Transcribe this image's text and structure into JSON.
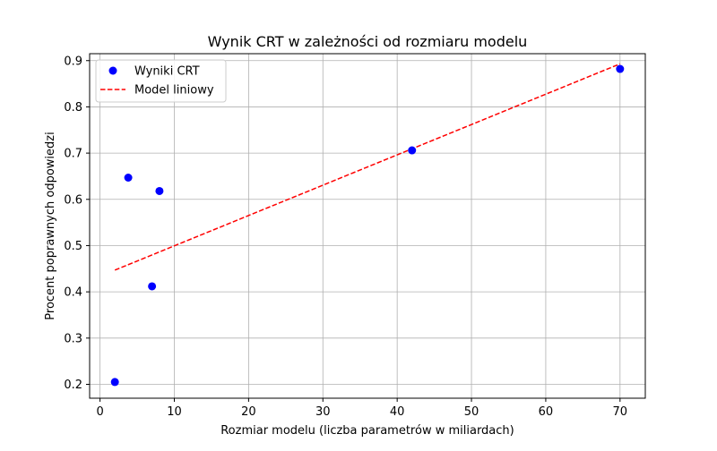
{
  "chart_data": {
    "type": "scatter",
    "title": "Wynik CRT w zależności od rozmiaru modelu",
    "xlabel": "Rozmiar modelu (liczba parametrów w miliardach)",
    "ylabel": "Procent poprawnych odpowiedzi",
    "xlim": [
      -1.4,
      73.4
    ],
    "ylim": [
      0.17,
      0.915
    ],
    "xticks": [
      0,
      10,
      20,
      30,
      40,
      50,
      60,
      70
    ],
    "xtick_labels": [
      "0",
      "10",
      "20",
      "30",
      "40",
      "50",
      "60",
      "70"
    ],
    "yticks": [
      0.2,
      0.3,
      0.4,
      0.5,
      0.6,
      0.7,
      0.8,
      0.9
    ],
    "ytick_labels": [
      "0.2",
      "0.3",
      "0.4",
      "0.5",
      "0.6",
      "0.7",
      "0.8",
      "0.9"
    ],
    "grid": true,
    "legend_position": "top-left",
    "series": [
      {
        "name": "Wyniki CRT",
        "kind": "scatter",
        "color": "#0000ff",
        "points": [
          {
            "x": 2,
            "y": 0.205
          },
          {
            "x": 3.8,
            "y": 0.647
          },
          {
            "x": 7,
            "y": 0.412
          },
          {
            "x": 8,
            "y": 0.618
          },
          {
            "x": 42,
            "y": 0.706
          },
          {
            "x": 70,
            "y": 0.882
          }
        ]
      },
      {
        "name": "Model liniowy",
        "kind": "line",
        "style": "dashed",
        "color": "#ff0000",
        "points": [
          {
            "x": 2,
            "y": 0.447
          },
          {
            "x": 70,
            "y": 0.893
          }
        ]
      }
    ]
  }
}
